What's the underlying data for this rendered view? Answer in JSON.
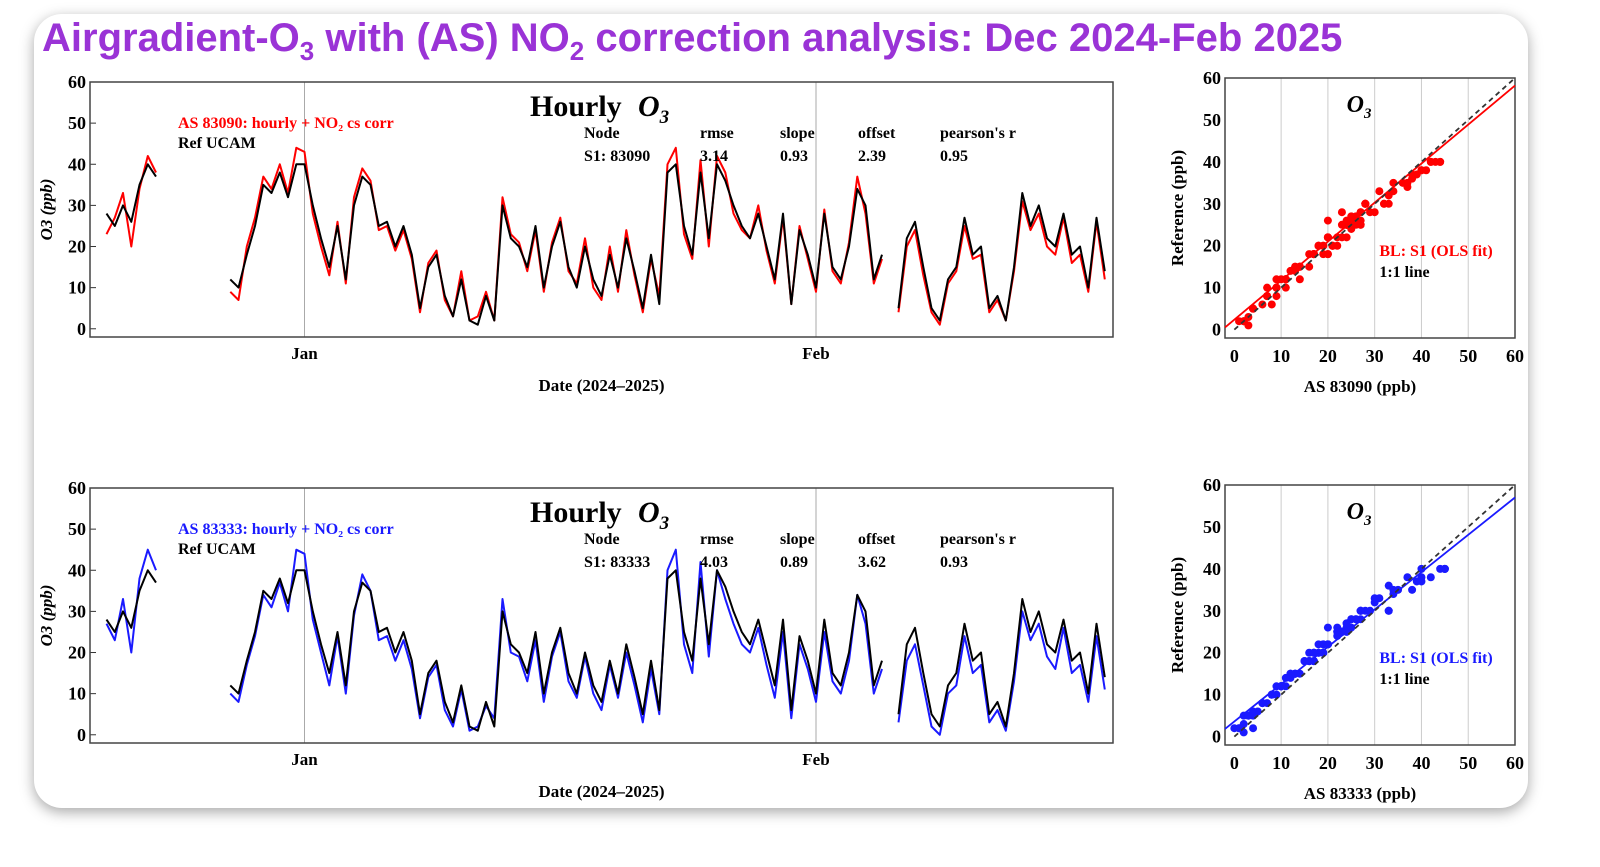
{
  "title": {
    "main": "Airgradient-O",
    "sub1": "3",
    "mid": " with (AS) NO",
    "sub2": "2",
    "end": " correction analysis: Dec 2024-Feb 2025"
  },
  "colors": {
    "title": "#9a33d6",
    "red": "#ff0000",
    "blue": "#1a1aff",
    "reference": "#000000"
  },
  "chart_data": [
    {
      "type": "line",
      "title": "Hourly O3",
      "xlabel": "Date (2024–2025)",
      "ylabel": "O3 (ppb)",
      "xlim": [
        "2024-12-19",
        "2025-02-19"
      ],
      "ylim": [
        -2,
        60
      ],
      "yticks": [
        0,
        10,
        20,
        30,
        40,
        50,
        60
      ],
      "xticks": [
        {
          "date": "2025-01-01",
          "label": "Jan"
        },
        {
          "date": "2025-02-01",
          "label": "Feb"
        }
      ],
      "legend": [
        "AS 83090: hourly + NO₂ cs corr",
        "Ref UCAM"
      ],
      "legend_placement": "top-left",
      "stats": {
        "headers": [
          "Node",
          "rmse",
          "slope",
          "offset",
          "pearson's r"
        ],
        "row": [
          "S1: 83090",
          "3.14",
          "0.93",
          "2.39",
          "0.95"
        ]
      },
      "series": [
        {
          "name": "AS 83090: hourly + NO₂ cs corr",
          "color": "#ff0000",
          "values": [
            23,
            27,
            33,
            20,
            34,
            42,
            38,
            null,
            null,
            null,
            null,
            null,
            null,
            null,
            null,
            9,
            7,
            20,
            27,
            37,
            34,
            40,
            33,
            44,
            43,
            28,
            20,
            13,
            26,
            11,
            32,
            39,
            36,
            24,
            25,
            19,
            24,
            17,
            4,
            16,
            19,
            7,
            3,
            14,
            2,
            3,
            9,
            2,
            32,
            23,
            21,
            14,
            24,
            9,
            21,
            27,
            14,
            11,
            22,
            10,
            7,
            20,
            9,
            24,
            13,
            4,
            17,
            8,
            40,
            44,
            23,
            17,
            41,
            20,
            42,
            38,
            28,
            24,
            22,
            30,
            19,
            11,
            27,
            6,
            25,
            17,
            9,
            29,
            14,
            11,
            21,
            37,
            28,
            11,
            17,
            null,
            4,
            20,
            24,
            13,
            4,
            1,
            11,
            14,
            25,
            17,
            18,
            4,
            7,
            2,
            14,
            31,
            24,
            28,
            20,
            18,
            27,
            16,
            18,
            9,
            26,
            12
          ]
        },
        {
          "name": "Ref UCAM",
          "color": "#000000",
          "values": [
            28,
            25,
            30,
            26,
            35,
            40,
            37,
            null,
            null,
            null,
            null,
            null,
            null,
            null,
            null,
            12,
            10,
            18,
            25,
            35,
            33,
            38,
            32,
            40,
            40,
            30,
            22,
            15,
            25,
            12,
            30,
            37,
            35,
            25,
            26,
            20,
            25,
            18,
            5,
            15,
            18,
            8,
            3,
            12,
            2,
            1,
            8,
            2,
            30,
            22,
            20,
            15,
            25,
            10,
            20,
            26,
            15,
            10,
            20,
            12,
            8,
            18,
            10,
            22,
            14,
            5,
            18,
            6,
            38,
            40,
            25,
            18,
            38,
            22,
            40,
            36,
            30,
            25,
            22,
            28,
            20,
            12,
            28,
            6,
            24,
            18,
            10,
            28,
            15,
            12,
            20,
            34,
            30,
            12,
            18,
            null,
            5,
            22,
            26,
            15,
            5,
            2,
            12,
            15,
            27,
            18,
            20,
            5,
            8,
            2,
            15,
            33,
            25,
            30,
            22,
            20,
            28,
            18,
            20,
            10,
            27,
            14
          ]
        }
      ],
      "x_start": "2024-12-20T00:00",
      "x_step": "12h"
    },
    {
      "type": "scatter",
      "title": "O3",
      "xlabel": "AS 83090 (ppb)",
      "ylabel": "Reference (ppb)",
      "xlim": [
        -2,
        60
      ],
      "ylim": [
        -2,
        60
      ],
      "ticks": [
        0,
        10,
        20,
        30,
        40,
        50,
        60
      ],
      "legend": [
        "BL: S1 (OLS fit)",
        "1:1 line"
      ],
      "legend_placement": "bottom-right",
      "fit": {
        "slope": 0.93,
        "offset": 2.39
      },
      "points_from": "chart 1: x = AS 83090, y = Ref UCAM"
    },
    {
      "type": "line",
      "title": "Hourly O3",
      "xlabel": "Date (2024–2025)",
      "ylabel": "O3 (ppb)",
      "xlim": [
        "2024-12-19",
        "2025-02-19"
      ],
      "ylim": [
        -2,
        60
      ],
      "yticks": [
        0,
        10,
        20,
        30,
        40,
        50,
        60
      ],
      "xticks": [
        {
          "date": "2025-01-01",
          "label": "Jan"
        },
        {
          "date": "2025-02-01",
          "label": "Feb"
        }
      ],
      "legend": [
        "AS 83333: hourly + NO₂ cs corr",
        "Ref UCAM"
      ],
      "legend_placement": "top-left",
      "stats": {
        "headers": [
          "Node",
          "rmse",
          "slope",
          "offset",
          "pearson's r"
        ],
        "row": [
          "S1: 83333",
          "4.03",
          "0.89",
          "3.62",
          "0.93"
        ]
      },
      "series": [
        {
          "name": "AS 83333: hourly + NO₂ cs corr",
          "color": "#1a1aff",
          "values": [
            27,
            23,
            33,
            20,
            38,
            45,
            40,
            null,
            null,
            null,
            null,
            null,
            null,
            null,
            null,
            10,
            8,
            17,
            24,
            34,
            31,
            37,
            30,
            45,
            44,
            28,
            20,
            12,
            24,
            10,
            29,
            39,
            35,
            23,
            24,
            18,
            23,
            16,
            4,
            14,
            17,
            6,
            2,
            11,
            1,
            2,
            7,
            4,
            33,
            20,
            19,
            13,
            23,
            8,
            19,
            25,
            13,
            9,
            19,
            10,
            6,
            17,
            9,
            20,
            12,
            3,
            16,
            5,
            40,
            45,
            22,
            15,
            42,
            19,
            40,
            33,
            27,
            22,
            20,
            26,
            17,
            9,
            25,
            4,
            22,
            16,
            8,
            25,
            13,
            10,
            18,
            34,
            27,
            10,
            16,
            null,
            3,
            18,
            22,
            12,
            2,
            0,
            10,
            12,
            24,
            15,
            17,
            3,
            6,
            1,
            13,
            30,
            23,
            27,
            19,
            16,
            26,
            15,
            17,
            8,
            24,
            11
          ]
        },
        {
          "name": "Ref UCAM",
          "color": "#000000",
          "values": [
            28,
            25,
            30,
            26,
            35,
            40,
            37,
            null,
            null,
            null,
            null,
            null,
            null,
            null,
            null,
            12,
            10,
            18,
            25,
            35,
            33,
            38,
            32,
            40,
            40,
            30,
            22,
            15,
            25,
            12,
            30,
            37,
            35,
            25,
            26,
            20,
            25,
            18,
            5,
            15,
            18,
            8,
            3,
            12,
            2,
            1,
            8,
            2,
            30,
            22,
            20,
            15,
            25,
            10,
            20,
            26,
            15,
            10,
            20,
            12,
            8,
            18,
            10,
            22,
            14,
            5,
            18,
            6,
            38,
            40,
            25,
            18,
            38,
            22,
            40,
            36,
            30,
            25,
            22,
            28,
            20,
            12,
            28,
            6,
            24,
            18,
            10,
            28,
            15,
            12,
            20,
            34,
            30,
            12,
            18,
            null,
            5,
            22,
            26,
            15,
            5,
            2,
            12,
            15,
            27,
            18,
            20,
            5,
            8,
            2,
            15,
            33,
            25,
            30,
            22,
            20,
            28,
            18,
            20,
            10,
            27,
            14
          ]
        }
      ],
      "x_start": "2024-12-20T00:00",
      "x_step": "12h"
    },
    {
      "type": "scatter",
      "title": "O3",
      "xlabel": "AS 83333 (ppb)",
      "ylabel": "Reference (ppb)",
      "xlim": [
        -2,
        60
      ],
      "ylim": [
        -2,
        60
      ],
      "ticks": [
        0,
        10,
        20,
        30,
        40,
        50,
        60
      ],
      "legend": [
        "BL: S1 (OLS fit)",
        "1:1 line"
      ],
      "legend_placement": "bottom-right",
      "fit": {
        "slope": 0.89,
        "offset": 3.62
      },
      "points_from": "chart 3: x = AS 83333, y = Ref UCAM"
    }
  ]
}
